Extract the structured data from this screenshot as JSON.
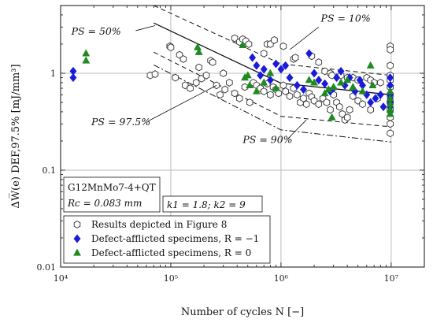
{
  "chart_data": {
    "type": "scatter",
    "xscale": "log",
    "yscale": "log",
    "xlim": [
      10000,
      20000000
    ],
    "ylim": [
      0.01,
      5
    ],
    "grid": true,
    "xlabel": "Number of cycles N [−]",
    "ylabel": "ΔW̅(e) DEF,97.5% [mJ/mm³]",
    "x_ticks": [
      {
        "value": 10000,
        "label": "10⁴"
      },
      {
        "value": 100000,
        "label": "10⁵"
      },
      {
        "value": 1000000,
        "label": "10⁶"
      },
      {
        "value": 10000000,
        "label": "10⁷"
      }
    ],
    "y_ticks": [
      {
        "value": 0.01,
        "label": "0.01"
      },
      {
        "value": 0.1,
        "label": "0.1"
      },
      {
        "value": 1,
        "label": "1"
      }
    ],
    "legend_position": "bottom-left",
    "material_label": "G12MnMo7-4+QT",
    "rc_label": "Rc = 0.083 mm",
    "k_label": "k1 = 1.8; k2 = 9",
    "colors": {
      "blue": "#1a1adb",
      "green": "#1f8a1f",
      "black": "#111111",
      "grid": "#bdbdbd"
    },
    "annotations": [
      {
        "text": "PS = 50%",
        "x": 12500,
        "y": 2.5
      },
      {
        "text": "PS = 10%",
        "x": 2300000,
        "y": 3.4
      },
      {
        "text": "PS = 97.5%",
        "x": 19000,
        "y": 0.29
      },
      {
        "text": "PS = 90%",
        "x": 450000,
        "y": 0.19
      }
    ],
    "curves": [
      {
        "name": "PS = 50%",
        "style": "solid",
        "points": [
          [
            70000,
            3.3
          ],
          [
            1000000,
            0.79
          ],
          [
            10000000,
            0.6
          ]
        ]
      },
      {
        "name": "PS = 10%",
        "style": "dashed",
        "points": [
          [
            70000,
            5.0
          ],
          [
            1000000,
            1.25
          ],
          [
            10000000,
            0.95
          ]
        ]
      },
      {
        "name": "PS = 90%",
        "style": "dashed",
        "points": [
          [
            70000,
            1.65
          ],
          [
            1000000,
            0.36
          ],
          [
            10000000,
            0.28
          ]
        ]
      },
      {
        "name": "PS = 97.5%",
        "style": "dashdot",
        "points": [
          [
            70000,
            1.22
          ],
          [
            1000000,
            0.26
          ],
          [
            10000000,
            0.195
          ]
        ]
      }
    ],
    "series": [
      {
        "name": "Results depicted in Figure 8",
        "marker": "hexagon",
        "points": [
          [
            98000,
            1.9
          ],
          [
            100000,
            1.85
          ],
          [
            120000,
            1.55
          ],
          [
            130000,
            1.4
          ],
          [
            180000,
            1.15
          ],
          [
            230000,
            1.35
          ],
          [
            240000,
            1.3
          ],
          [
            300000,
            1.0
          ],
          [
            380000,
            2.3
          ],
          [
            420000,
            2.1
          ],
          [
            450000,
            2.25
          ],
          [
            480000,
            2.15
          ],
          [
            510000,
            2.0
          ],
          [
            700000,
            1.6
          ],
          [
            750000,
            2.0
          ],
          [
            800000,
            2.0
          ],
          [
            870000,
            2.2
          ],
          [
            1050000,
            1.9
          ],
          [
            1300000,
            1.4
          ],
          [
            1350000,
            1.45
          ],
          [
            1900000,
            1.5
          ],
          [
            2200000,
            1.3
          ],
          [
            2500000,
            1.05
          ],
          [
            2800000,
            1.0
          ],
          [
            2900000,
            0.95
          ],
          [
            3500000,
            0.95
          ],
          [
            4000000,
            0.9
          ],
          [
            4500000,
            0.9
          ],
          [
            5000000,
            0.85
          ],
          [
            6000000,
            0.9
          ],
          [
            6500000,
            0.85
          ],
          [
            7000000,
            0.8
          ],
          [
            8000000,
            0.8
          ],
          [
            9800000,
            1.9
          ],
          [
            9800000,
            1.75
          ],
          [
            9800000,
            1.2
          ],
          [
            65000,
            0.95
          ],
          [
            72000,
            0.98
          ],
          [
            110000,
            0.9
          ],
          [
            135000,
            0.75
          ],
          [
            150000,
            0.7
          ],
          [
            170000,
            0.8
          ],
          [
            190000,
            0.88
          ],
          [
            210000,
            0.95
          ],
          [
            260000,
            0.75
          ],
          [
            280000,
            0.6
          ],
          [
            310000,
            0.68
          ],
          [
            340000,
            0.8
          ],
          [
            380000,
            0.62
          ],
          [
            420000,
            0.55
          ],
          [
            470000,
            0.72
          ],
          [
            520000,
            0.5
          ],
          [
            560000,
            0.8
          ],
          [
            600000,
            0.75
          ],
          [
            650000,
            0.7
          ],
          [
            700000,
            0.65
          ],
          [
            750000,
            0.78
          ],
          [
            800000,
            0.6
          ],
          [
            850000,
            0.72
          ],
          [
            900000,
            0.68
          ],
          [
            950000,
            0.62
          ],
          [
            1050000,
            0.75
          ],
          [
            1100000,
            0.65
          ],
          [
            1200000,
            0.58
          ],
          [
            1300000,
            0.7
          ],
          [
            1400000,
            0.6
          ],
          [
            1500000,
            0.5
          ],
          [
            1600000,
            0.55
          ],
          [
            1700000,
            0.48
          ],
          [
            1800000,
            0.62
          ],
          [
            1900000,
            0.57
          ],
          [
            2000000,
            0.52
          ],
          [
            2200000,
            0.48
          ],
          [
            2400000,
            0.55
          ],
          [
            2600000,
            0.5
          ],
          [
            2800000,
            0.42
          ],
          [
            3000000,
            0.6
          ],
          [
            3200000,
            0.5
          ],
          [
            3400000,
            0.45
          ],
          [
            3600000,
            0.38
          ],
          [
            3800000,
            0.33
          ],
          [
            4000000,
            0.35
          ],
          [
            4200000,
            0.42
          ],
          [
            4500000,
            0.58
          ],
          [
            5000000,
            0.52
          ],
          [
            5500000,
            0.48
          ],
          [
            6500000,
            0.42
          ],
          [
            7500000,
            0.55
          ],
          [
            9800000,
            0.95
          ],
          [
            9800000,
            0.85
          ],
          [
            9800000,
            0.72
          ],
          [
            9800000,
            0.6
          ],
          [
            9800000,
            0.5
          ],
          [
            9800000,
            0.42
          ],
          [
            9800000,
            0.35
          ],
          [
            9800000,
            0.3
          ],
          [
            9800000,
            0.24
          ]
        ]
      },
      {
        "name": "Defect-afflicted specimens, R = −1",
        "marker": "diamond",
        "color": "#1a1adb",
        "points": [
          [
            13000,
            1.05
          ],
          [
            13000,
            0.9
          ],
          [
            550000,
            1.45
          ],
          [
            600000,
            1.2
          ],
          [
            650000,
            0.95
          ],
          [
            700000,
            1.1
          ],
          [
            800000,
            0.85
          ],
          [
            900000,
            1.25
          ],
          [
            1000000,
            1.1
          ],
          [
            1100000,
            1.2
          ],
          [
            1200000,
            0.9
          ],
          [
            1400000,
            0.75
          ],
          [
            1600000,
            0.68
          ],
          [
            1800000,
            1.6
          ],
          [
            2000000,
            1.0
          ],
          [
            2200000,
            0.85
          ],
          [
            2500000,
            0.78
          ],
          [
            2800000,
            0.65
          ],
          [
            3000000,
            0.7
          ],
          [
            3200000,
            0.9
          ],
          [
            3500000,
            1.05
          ],
          [
            3800000,
            0.75
          ],
          [
            4200000,
            0.9
          ],
          [
            4700000,
            0.65
          ],
          [
            5200000,
            0.85
          ],
          [
            5500000,
            0.75
          ],
          [
            6000000,
            0.6
          ],
          [
            6500000,
            0.5
          ],
          [
            7200000,
            0.55
          ],
          [
            8000000,
            0.6
          ],
          [
            8500000,
            0.45
          ],
          [
            9800000,
            0.9
          ],
          [
            9800000,
            0.75
          ],
          [
            9800000,
            0.6
          ],
          [
            9800000,
            0.55
          ],
          [
            9800000,
            0.5
          ],
          [
            9800000,
            0.45
          ],
          [
            9800000,
            0.4
          ]
        ]
      },
      {
        "name": "Defect-afflicted specimens, R = 0",
        "marker": "triangle",
        "color": "#1f8a1f",
        "points": [
          [
            17000,
            1.6
          ],
          [
            17000,
            1.35
          ],
          [
            175000,
            1.85
          ],
          [
            180000,
            1.65
          ],
          [
            450000,
            1.95
          ],
          [
            470000,
            0.9
          ],
          [
            500000,
            0.95
          ],
          [
            520000,
            0.75
          ],
          [
            600000,
            0.65
          ],
          [
            700000,
            0.8
          ],
          [
            800000,
            1.0
          ],
          [
            900000,
            0.7
          ],
          [
            1800000,
            0.85
          ],
          [
            2000000,
            0.8
          ],
          [
            2500000,
            0.62
          ],
          [
            2700000,
            0.68
          ],
          [
            2900000,
            0.35
          ],
          [
            3000000,
            0.72
          ],
          [
            3500000,
            0.8
          ],
          [
            4000000,
            0.85
          ],
          [
            4500000,
            0.72
          ],
          [
            5500000,
            0.65
          ],
          [
            6500000,
            1.2
          ],
          [
            6800000,
            0.75
          ],
          [
            9800000,
            0.65
          ],
          [
            9800000,
            0.55
          ],
          [
            9800000,
            0.48
          ],
          [
            9800000,
            0.42
          ],
          [
            9800000,
            0.38
          ]
        ]
      }
    ]
  }
}
